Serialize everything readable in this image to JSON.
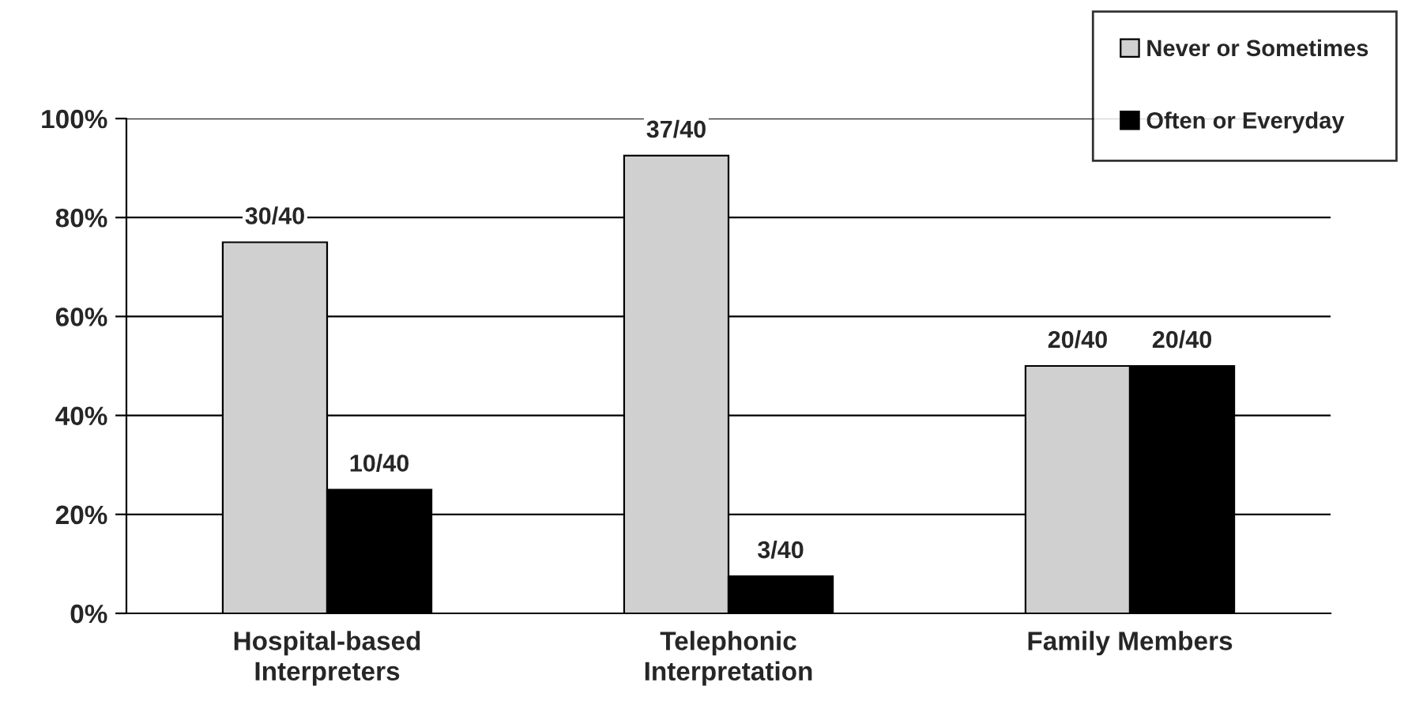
{
  "chart_data": {
    "type": "bar",
    "categories": [
      "Hospital-based\nInterpreters",
      "Telephonic\nInterpretation",
      "Family Members"
    ],
    "series": [
      {
        "name": "Never or Sometimes",
        "color": "#d0d0d0",
        "values": [
          75,
          92.5,
          50
        ],
        "value_labels": [
          "30/40",
          "37/40",
          "20/40"
        ]
      },
      {
        "name": "Often or Everyday",
        "color": "#000000",
        "values": [
          25,
          7.5,
          50
        ],
        "value_labels": [
          "10/40",
          "3/40",
          "20/40"
        ]
      }
    ],
    "ylim": [
      0,
      100
    ],
    "yticks": [
      {
        "value": 0,
        "label": "0%"
      },
      {
        "value": 20,
        "label": "20%"
      },
      {
        "value": 40,
        "label": "40%"
      },
      {
        "value": 60,
        "label": "60%"
      },
      {
        "value": 80,
        "label": "80%"
      },
      {
        "value": 100,
        "label": "100%"
      }
    ],
    "grid": "y",
    "legend": "top right"
  }
}
